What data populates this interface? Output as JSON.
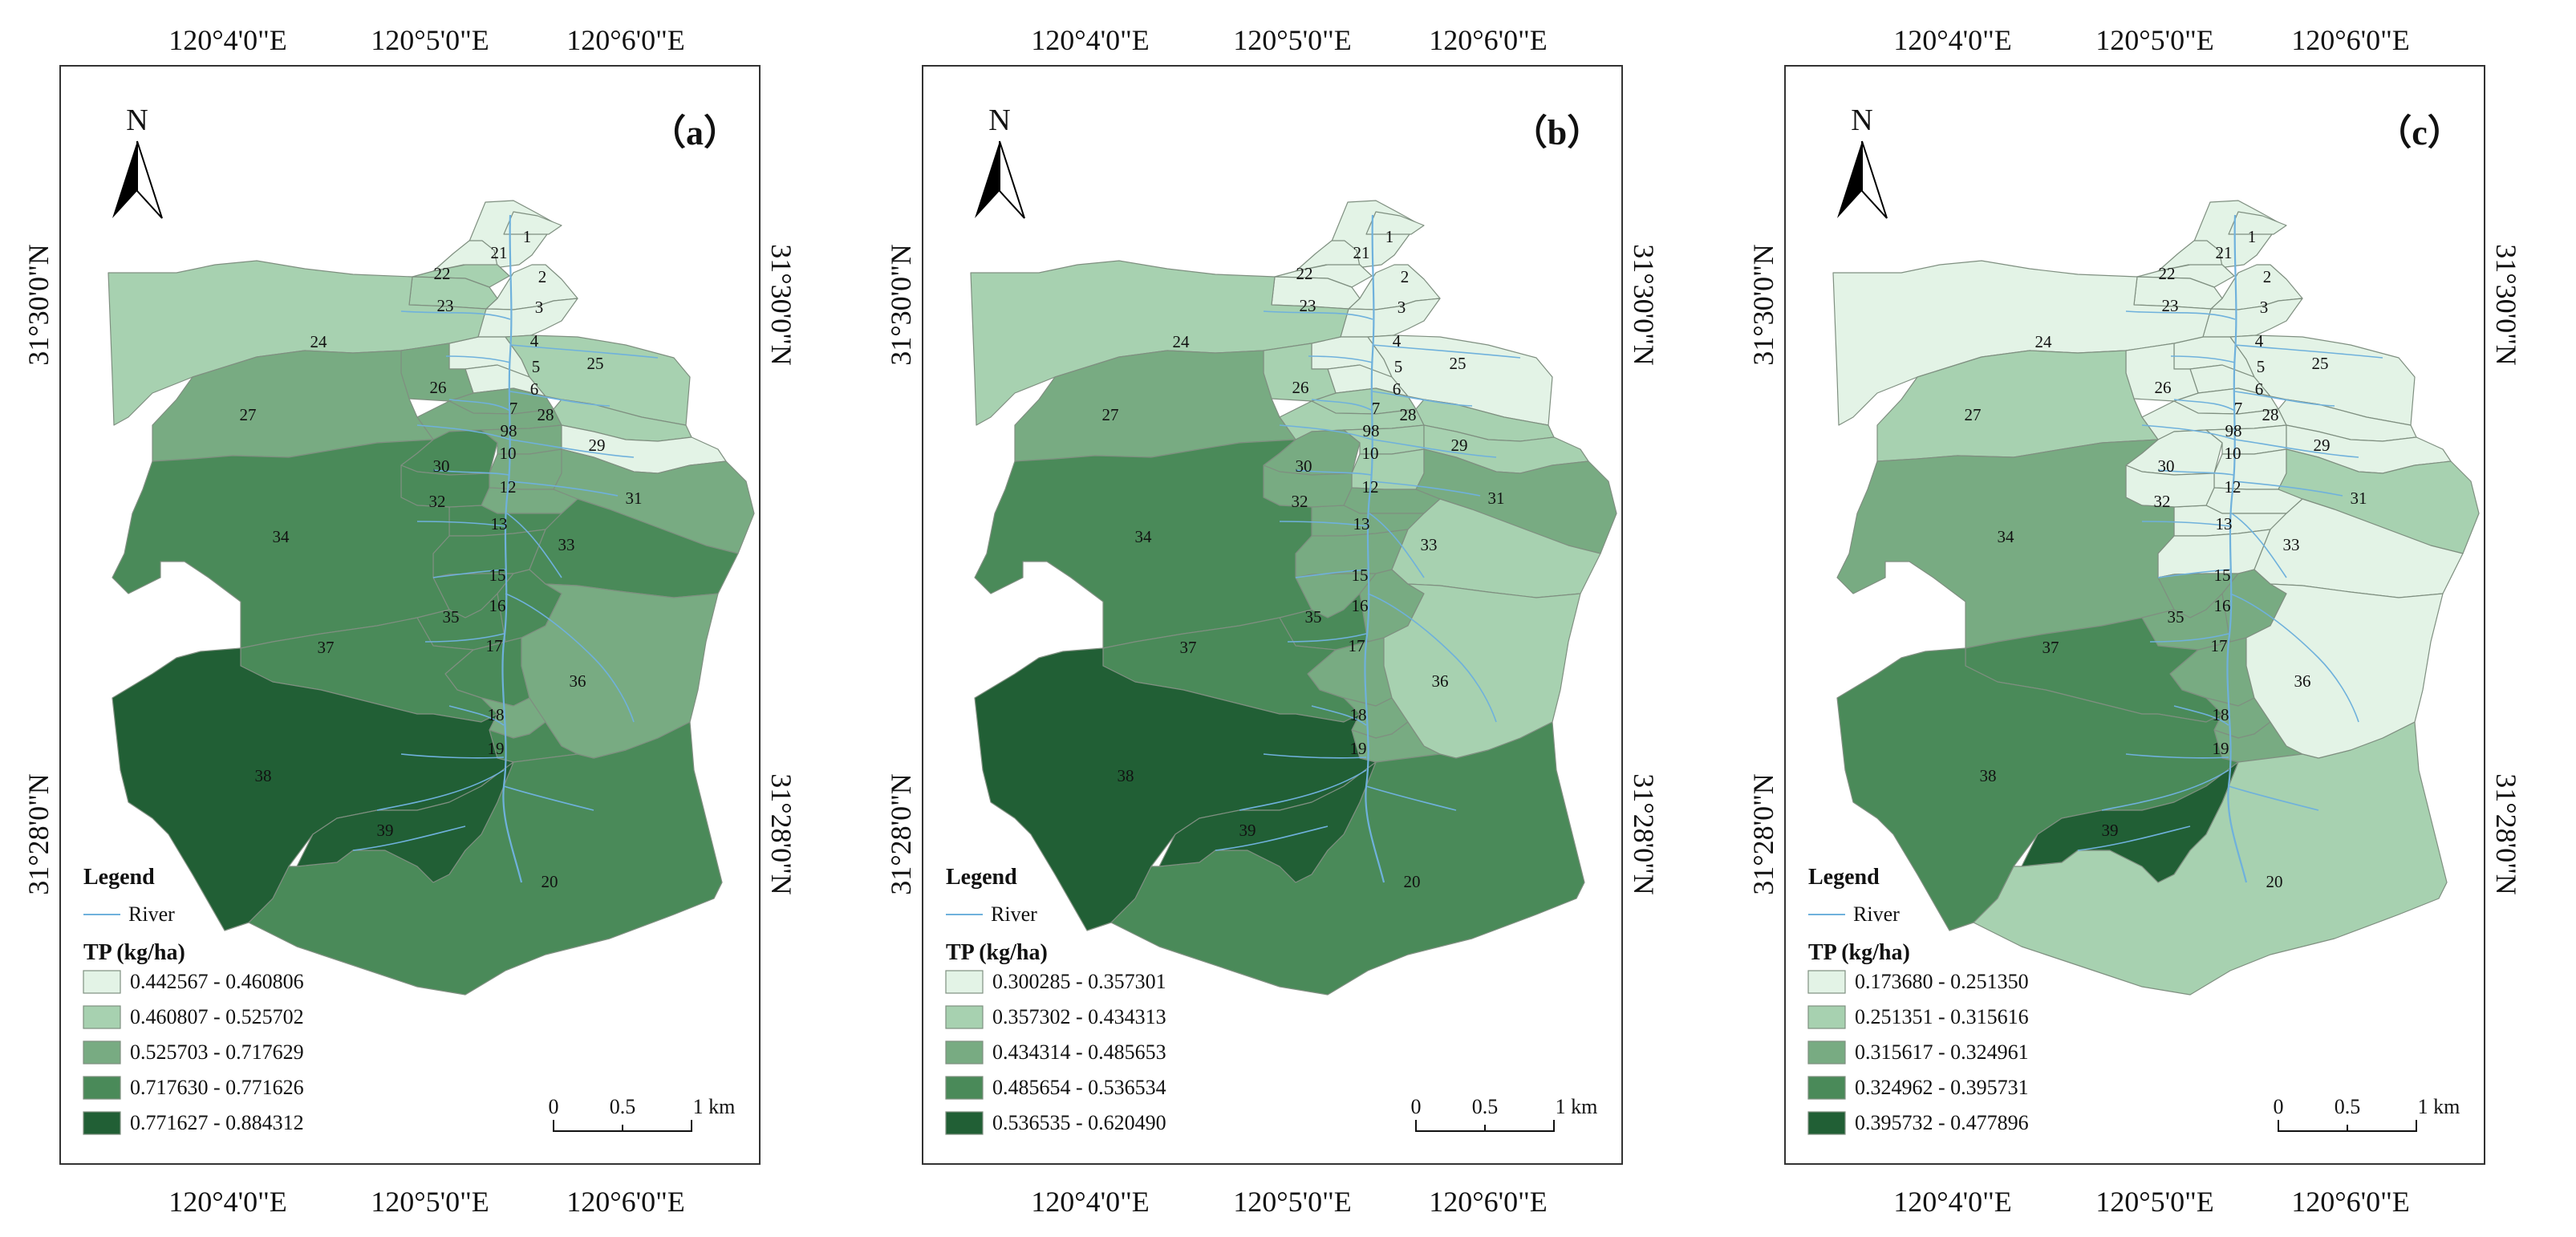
{
  "colors": {
    "class1": "#e3f3e6",
    "class2": "#a7d1b0",
    "class3": "#78ab82",
    "class4": "#4a8a59",
    "class5": "#215f35",
    "river": "#6fb1dc",
    "frame": "#333333",
    "boundary": "#7f8f80"
  },
  "axes": {
    "top_labels": [
      "120°4'0\"E",
      "120°5'0\"E",
      "120°6'0\"E"
    ],
    "bottom_labels": [
      "120°4'0\"E",
      "120°5'0\"E",
      "120°6'0\"E"
    ],
    "left_labels": [
      "31°30'0\"N",
      "31°28'0\"N"
    ],
    "right_labels": [
      "31°30'0\"N",
      "31°28'0\"N"
    ]
  },
  "north_label": "N",
  "legend_title": "Legend",
  "river_label": "River",
  "scale_labels": [
    "0",
    "0.5",
    "1 km"
  ],
  "region_ids": [
    "1",
    "2",
    "3",
    "4",
    "5",
    "6",
    "7",
    "8",
    "9",
    "10",
    "11",
    "12",
    "13",
    "14",
    "15",
    "16",
    "17",
    "18",
    "19",
    "20",
    "21",
    "22",
    "23",
    "24",
    "25",
    "26",
    "27",
    "28",
    "29",
    "30",
    "31",
    "32",
    "33",
    "34",
    "35",
    "36",
    "37",
    "38",
    "39"
  ],
  "region_label_text": [
    "1",
    "2",
    "3",
    "4",
    "5",
    "6",
    "7",
    "98",
    "10",
    "12",
    "13",
    "15",
    "16",
    "17",
    "18",
    "19",
    "20",
    "21",
    "22",
    "23",
    "24",
    "25",
    "26",
    "27",
    "28",
    "29",
    "30",
    "31",
    "32",
    "33",
    "34",
    "35",
    "36",
    "37",
    "38",
    "39"
  ],
  "panels": [
    {
      "label": "（a）",
      "variable": "TP (kg/ha)",
      "legend_classes": [
        "0.442567 - 0.460806",
        "0.460807 - 0.525702",
        "0.525703 - 0.717629",
        "0.717630 - 0.771626",
        "0.771627 - 0.884312"
      ],
      "region_class": {
        "1": 1,
        "2": 1,
        "3": 1,
        "4": 1,
        "5": 1,
        "6": 1,
        "21": 1,
        "25": 2,
        "28": 2,
        "29": 1,
        "22": 2,
        "23": 2,
        "24": 2,
        "26": 3,
        "7": 3,
        "8": 3,
        "9": 3,
        "27": 3,
        "10": 3,
        "30": 4,
        "11": 3,
        "12": 3,
        "31": 3,
        "32": 4,
        "13": 4,
        "14": 4,
        "34": 4,
        "33": 4,
        "15": 4,
        "35": 4,
        "16": 4,
        "17": 4,
        "36": 3,
        "37": 4,
        "18": 3,
        "19": 4,
        "38": 5,
        "39": 5,
        "20": 4
      }
    },
    {
      "label": "（b）",
      "variable": "TP (kg/ha)",
      "legend_classes": [
        "0.300285 - 0.357301",
        "0.357302 - 0.434313",
        "0.434314 - 0.485653",
        "0.485654 - 0.536534",
        "0.536535 - 0.620490"
      ],
      "region_class": {
        "1": 1,
        "2": 1,
        "3": 1,
        "4": 1,
        "5": 1,
        "6": 1,
        "21": 1,
        "25": 1,
        "28": 2,
        "29": 2,
        "22": 1,
        "23": 1,
        "24": 2,
        "26": 2,
        "7": 2,
        "8": 2,
        "9": 2,
        "27": 3,
        "10": 2,
        "30": 3,
        "11": 2,
        "12": 3,
        "31": 3,
        "32": 3,
        "13": 3,
        "14": 3,
        "34": 4,
        "33": 2,
        "15": 3,
        "35": 4,
        "16": 3,
        "17": 3,
        "36": 2,
        "37": 4,
        "18": 3,
        "19": 3,
        "38": 5,
        "39": 5,
        "20": 4
      }
    },
    {
      "label": "（c）",
      "variable": "TP (kg/ha)",
      "legend_classes": [
        "0.173680 - 0.251350",
        "0.251351 - 0.315616",
        "0.315617 - 0.324961",
        "0.324962 - 0.395731",
        "0.395732 - 0.477896"
      ],
      "region_class": {
        "1": 1,
        "2": 1,
        "3": 1,
        "4": 1,
        "5": 1,
        "6": 1,
        "21": 1,
        "25": 1,
        "28": 1,
        "29": 1,
        "22": 1,
        "23": 1,
        "24": 1,
        "26": 1,
        "7": 1,
        "8": 1,
        "9": 1,
        "27": 2,
        "10": 1,
        "30": 1,
        "11": 1,
        "12": 1,
        "31": 2,
        "32": 1,
        "13": 1,
        "14": 1,
        "34": 3,
        "33": 1,
        "15": 3,
        "35": 3,
        "16": 3,
        "17": 3,
        "36": 1,
        "37": 4,
        "18": 3,
        "19": 3,
        "38": 4,
        "39": 5,
        "20": 2
      }
    }
  ]
}
